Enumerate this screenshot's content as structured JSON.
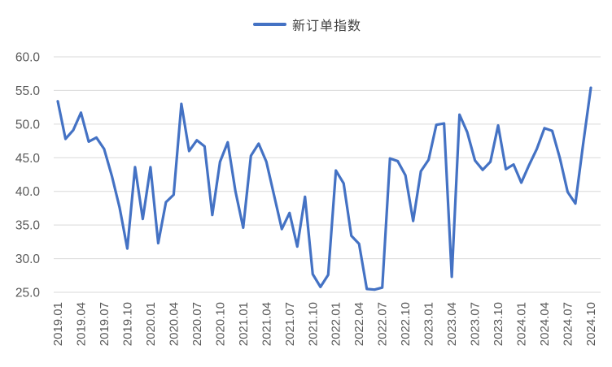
{
  "legend": {
    "series_label": "新订单指数"
  },
  "colors": {
    "series": "#4472C4",
    "grid": "#D9D9D9",
    "axis_text": "#595959",
    "legend_text": "#404040",
    "background": "#FFFFFF"
  },
  "chart_data": {
    "type": "line",
    "title": "",
    "legend_position": "top-center",
    "grid": true,
    "ylim": [
      25,
      60
    ],
    "ytick_step": 5,
    "ytick_labels": [
      "25.0",
      "30.0",
      "35.0",
      "40.0",
      "45.0",
      "50.0",
      "55.0",
      "60.0"
    ],
    "xtick_every": 3,
    "x": [
      "2019.01",
      "2019.02",
      "2019.03",
      "2019.04",
      "2019.05",
      "2019.06",
      "2019.07",
      "2019.08",
      "2019.09",
      "2019.10",
      "2019.11",
      "2019.12",
      "2020.01",
      "2020.02",
      "2020.03",
      "2020.04",
      "2020.05",
      "2020.06",
      "2020.07",
      "2020.08",
      "2020.09",
      "2020.10",
      "2020.11",
      "2020.12",
      "2021.01",
      "2021.02",
      "2021.03",
      "2021.04",
      "2021.05",
      "2021.06",
      "2021.07",
      "2021.08",
      "2021.09",
      "2021.10",
      "2021.11",
      "2021.12",
      "2022.01",
      "2022.02",
      "2022.03",
      "2022.04",
      "2022.05",
      "2022.06",
      "2022.07",
      "2022.08",
      "2022.09",
      "2022.10",
      "2022.11",
      "2022.12",
      "2023.01",
      "2023.02",
      "2023.03",
      "2023.04",
      "2023.05",
      "2023.06",
      "2023.07",
      "2023.08",
      "2023.09",
      "2023.10",
      "2023.11",
      "2023.12",
      "2024.01",
      "2024.02",
      "2024.03",
      "2024.04",
      "2024.05",
      "2024.06",
      "2024.07",
      "2024.08",
      "2024.09",
      "2024.10"
    ],
    "series": [
      {
        "name": "新订单指数",
        "values": [
          53.4,
          47.8,
          49.1,
          51.7,
          47.4,
          48.0,
          46.3,
          42.3,
          37.6,
          31.5,
          43.6,
          35.9,
          43.6,
          32.3,
          38.4,
          39.5,
          53.0,
          46.0,
          47.6,
          46.7,
          36.5,
          44.4,
          47.3,
          40.0,
          34.6,
          45.3,
          47.1,
          44.4,
          39.4,
          34.4,
          36.8,
          31.8,
          39.2,
          27.7,
          25.8,
          27.6,
          43.1,
          41.2,
          33.4,
          32.2,
          25.5,
          25.4,
          25.7,
          44.9,
          44.5,
          42.4,
          35.6,
          43.0,
          44.7,
          49.9,
          50.1,
          27.3,
          51.4,
          48.8,
          44.6,
          43.2,
          44.4,
          49.8,
          43.3,
          44.0,
          41.3,
          43.9,
          46.3,
          49.4,
          49.0,
          44.9,
          39.9,
          38.2,
          47.0,
          55.4
        ]
      }
    ]
  }
}
